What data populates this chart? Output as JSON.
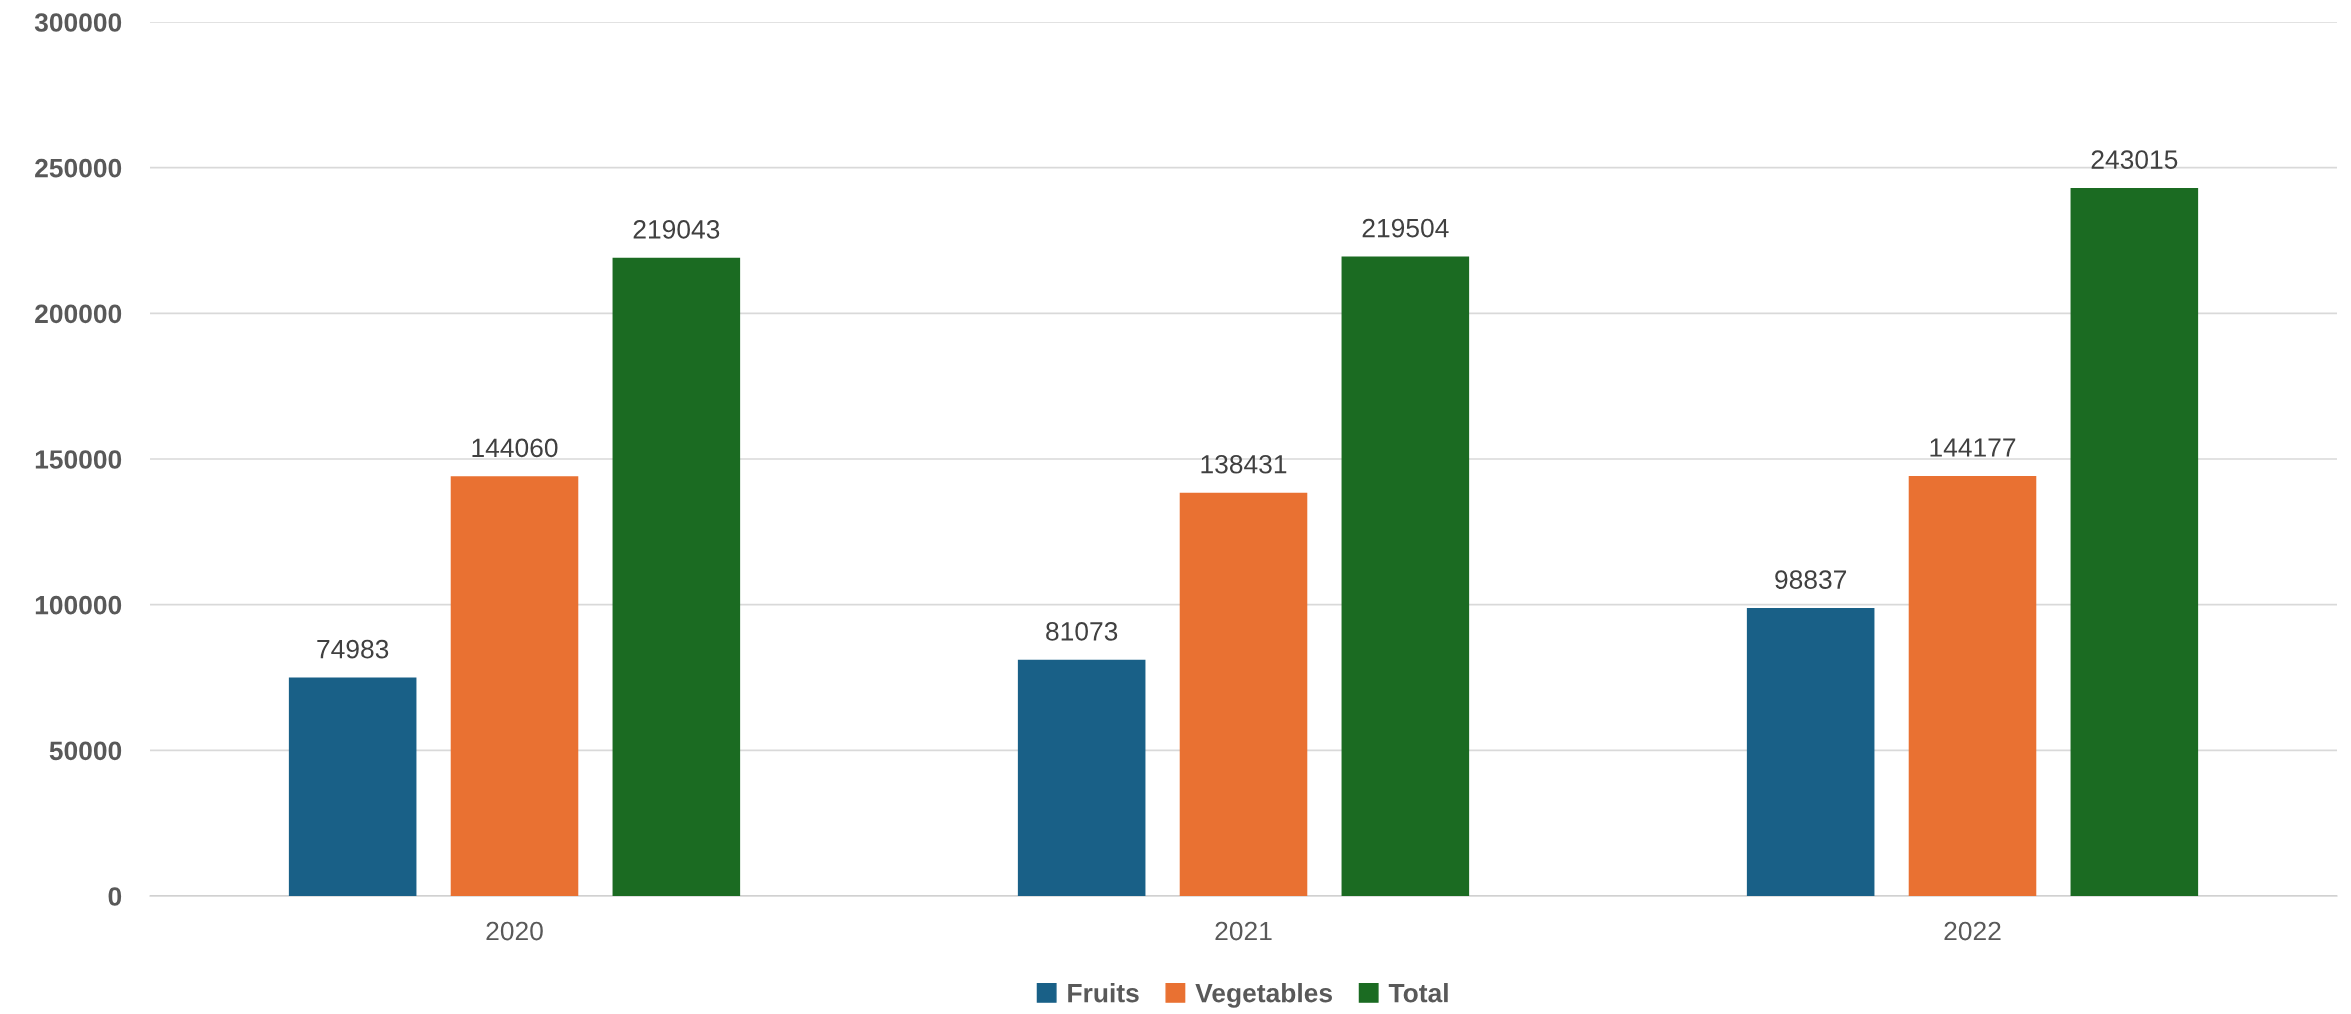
{
  "chart_data": {
    "type": "bar",
    "categories": [
      "2020",
      "2021",
      "2022"
    ],
    "series": [
      {
        "name": "Fruits",
        "color": "#196087",
        "values": [
          74983,
          81073,
          98837
        ]
      },
      {
        "name": "Vegetables",
        "color": "#e97132",
        "values": [
          144060,
          138431,
          144177
        ]
      },
      {
        "name": "Total",
        "color": "#1b6b22",
        "values": [
          219043,
          219504,
          243015
        ]
      }
    ],
    "ylim": [
      0,
      300000
    ],
    "yticks": [
      0,
      50000,
      100000,
      150000,
      200000,
      250000,
      300000
    ],
    "grid": "y",
    "legend": "bottom",
    "data_labels": true
  }
}
